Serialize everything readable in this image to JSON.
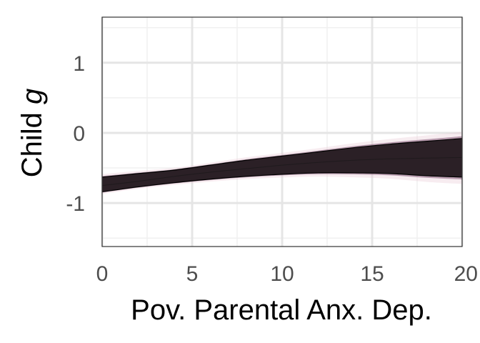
{
  "chart_data": {
    "type": "line",
    "title": "",
    "xlabel": "Pov. Parental Anx. Dep.",
    "ylabel_text": "Child ",
    "ylabel_italic": "g",
    "xlim": [
      0,
      20
    ],
    "ylim": [
      -1.62,
      1.65
    ],
    "xticks": [
      0,
      5,
      10,
      15,
      20
    ],
    "xtick_labels": [
      "0",
      "5",
      "10",
      "15",
      "20"
    ],
    "yticks": [
      -1,
      0,
      1
    ],
    "ytick_labels": [
      "-1",
      "0",
      "1"
    ],
    "grid": true,
    "legend": "none",
    "series": [
      {
        "role": "mean",
        "x": [
          0,
          2,
          4,
          6,
          8,
          10,
          12,
          14,
          16,
          18,
          20
        ],
        "values": [
          -0.75,
          -0.69,
          -0.62,
          -0.56,
          -0.51,
          -0.46,
          -0.42,
          -0.39,
          -0.37,
          -0.36,
          -0.35
        ]
      },
      {
        "role": "upper",
        "x": [
          0,
          2,
          4,
          6,
          8,
          10,
          12,
          14,
          16,
          18,
          20
        ],
        "values": [
          -0.63,
          -0.58,
          -0.53,
          -0.46,
          -0.39,
          -0.33,
          -0.27,
          -0.21,
          -0.16,
          -0.12,
          -0.08
        ]
      },
      {
        "role": "lower",
        "x": [
          0,
          2,
          4,
          6,
          8,
          10,
          12,
          14,
          16,
          18,
          20
        ],
        "values": [
          -0.84,
          -0.77,
          -0.71,
          -0.66,
          -0.62,
          -0.59,
          -0.57,
          -0.57,
          -0.58,
          -0.61,
          -0.63
        ]
      }
    ],
    "colors": {
      "band": "#2b2026",
      "band_edge": "#6b3a5e",
      "halo": "#e9c9d3",
      "outline": "#000000",
      "grid_major": "#e5e5e5",
      "grid_minor": "#f0f0f0",
      "panel_border": "#333333"
    }
  }
}
